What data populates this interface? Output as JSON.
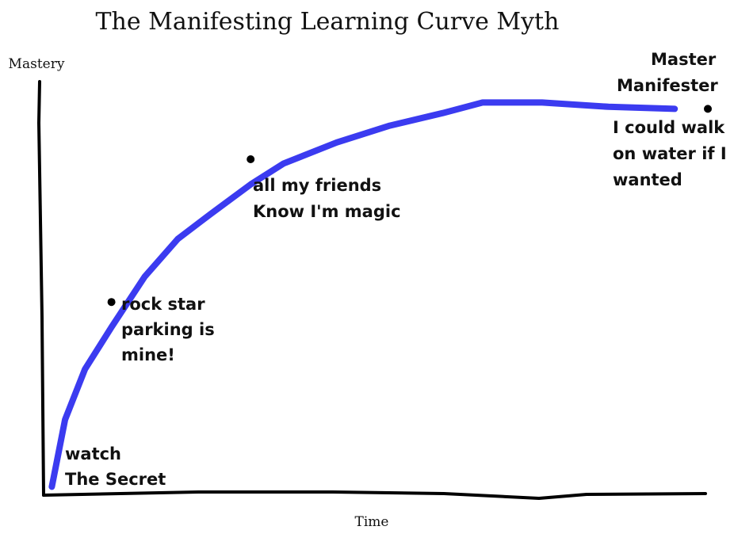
{
  "chart_data": {
    "type": "line",
    "title": "The Manifesting Learning Curve Myth",
    "xlabel": "Time",
    "ylabel": "Mastery",
    "xlim": [
      0,
      100
    ],
    "ylim": [
      0,
      100
    ],
    "grid": false,
    "series": [
      {
        "color": "#3b3bf0",
        "points": [
          [
            1,
            2
          ],
          [
            3,
            18
          ],
          [
            6,
            30
          ],
          [
            10,
            40
          ],
          [
            15,
            52
          ],
          [
            20,
            61
          ],
          [
            25,
            67
          ],
          [
            31,
            74
          ],
          [
            36,
            79
          ],
          [
            44,
            84
          ],
          [
            52,
            88
          ],
          [
            60,
            91
          ],
          [
            66,
            93.5
          ],
          [
            75,
            93.5
          ],
          [
            85,
            92.5
          ],
          [
            95,
            92
          ]
        ]
      }
    ],
    "annotations": [
      {
        "x": 1,
        "y": 2,
        "marker": false,
        "lines": [
          "watch",
          "The Secret"
        ]
      },
      {
        "x": 10,
        "y": 46,
        "marker": true,
        "lines": [
          "rock star",
          "parking is",
          "mine!"
        ]
      },
      {
        "x": 31,
        "y": 80,
        "marker": true,
        "lines": [
          "all my friends",
          "Know I'm magic"
        ]
      },
      {
        "x": 100,
        "y": 92,
        "marker": true,
        "lines": [
          "Master",
          "Manifester",
          "I could walk",
          "on water if I",
          "wanted"
        ]
      }
    ]
  }
}
